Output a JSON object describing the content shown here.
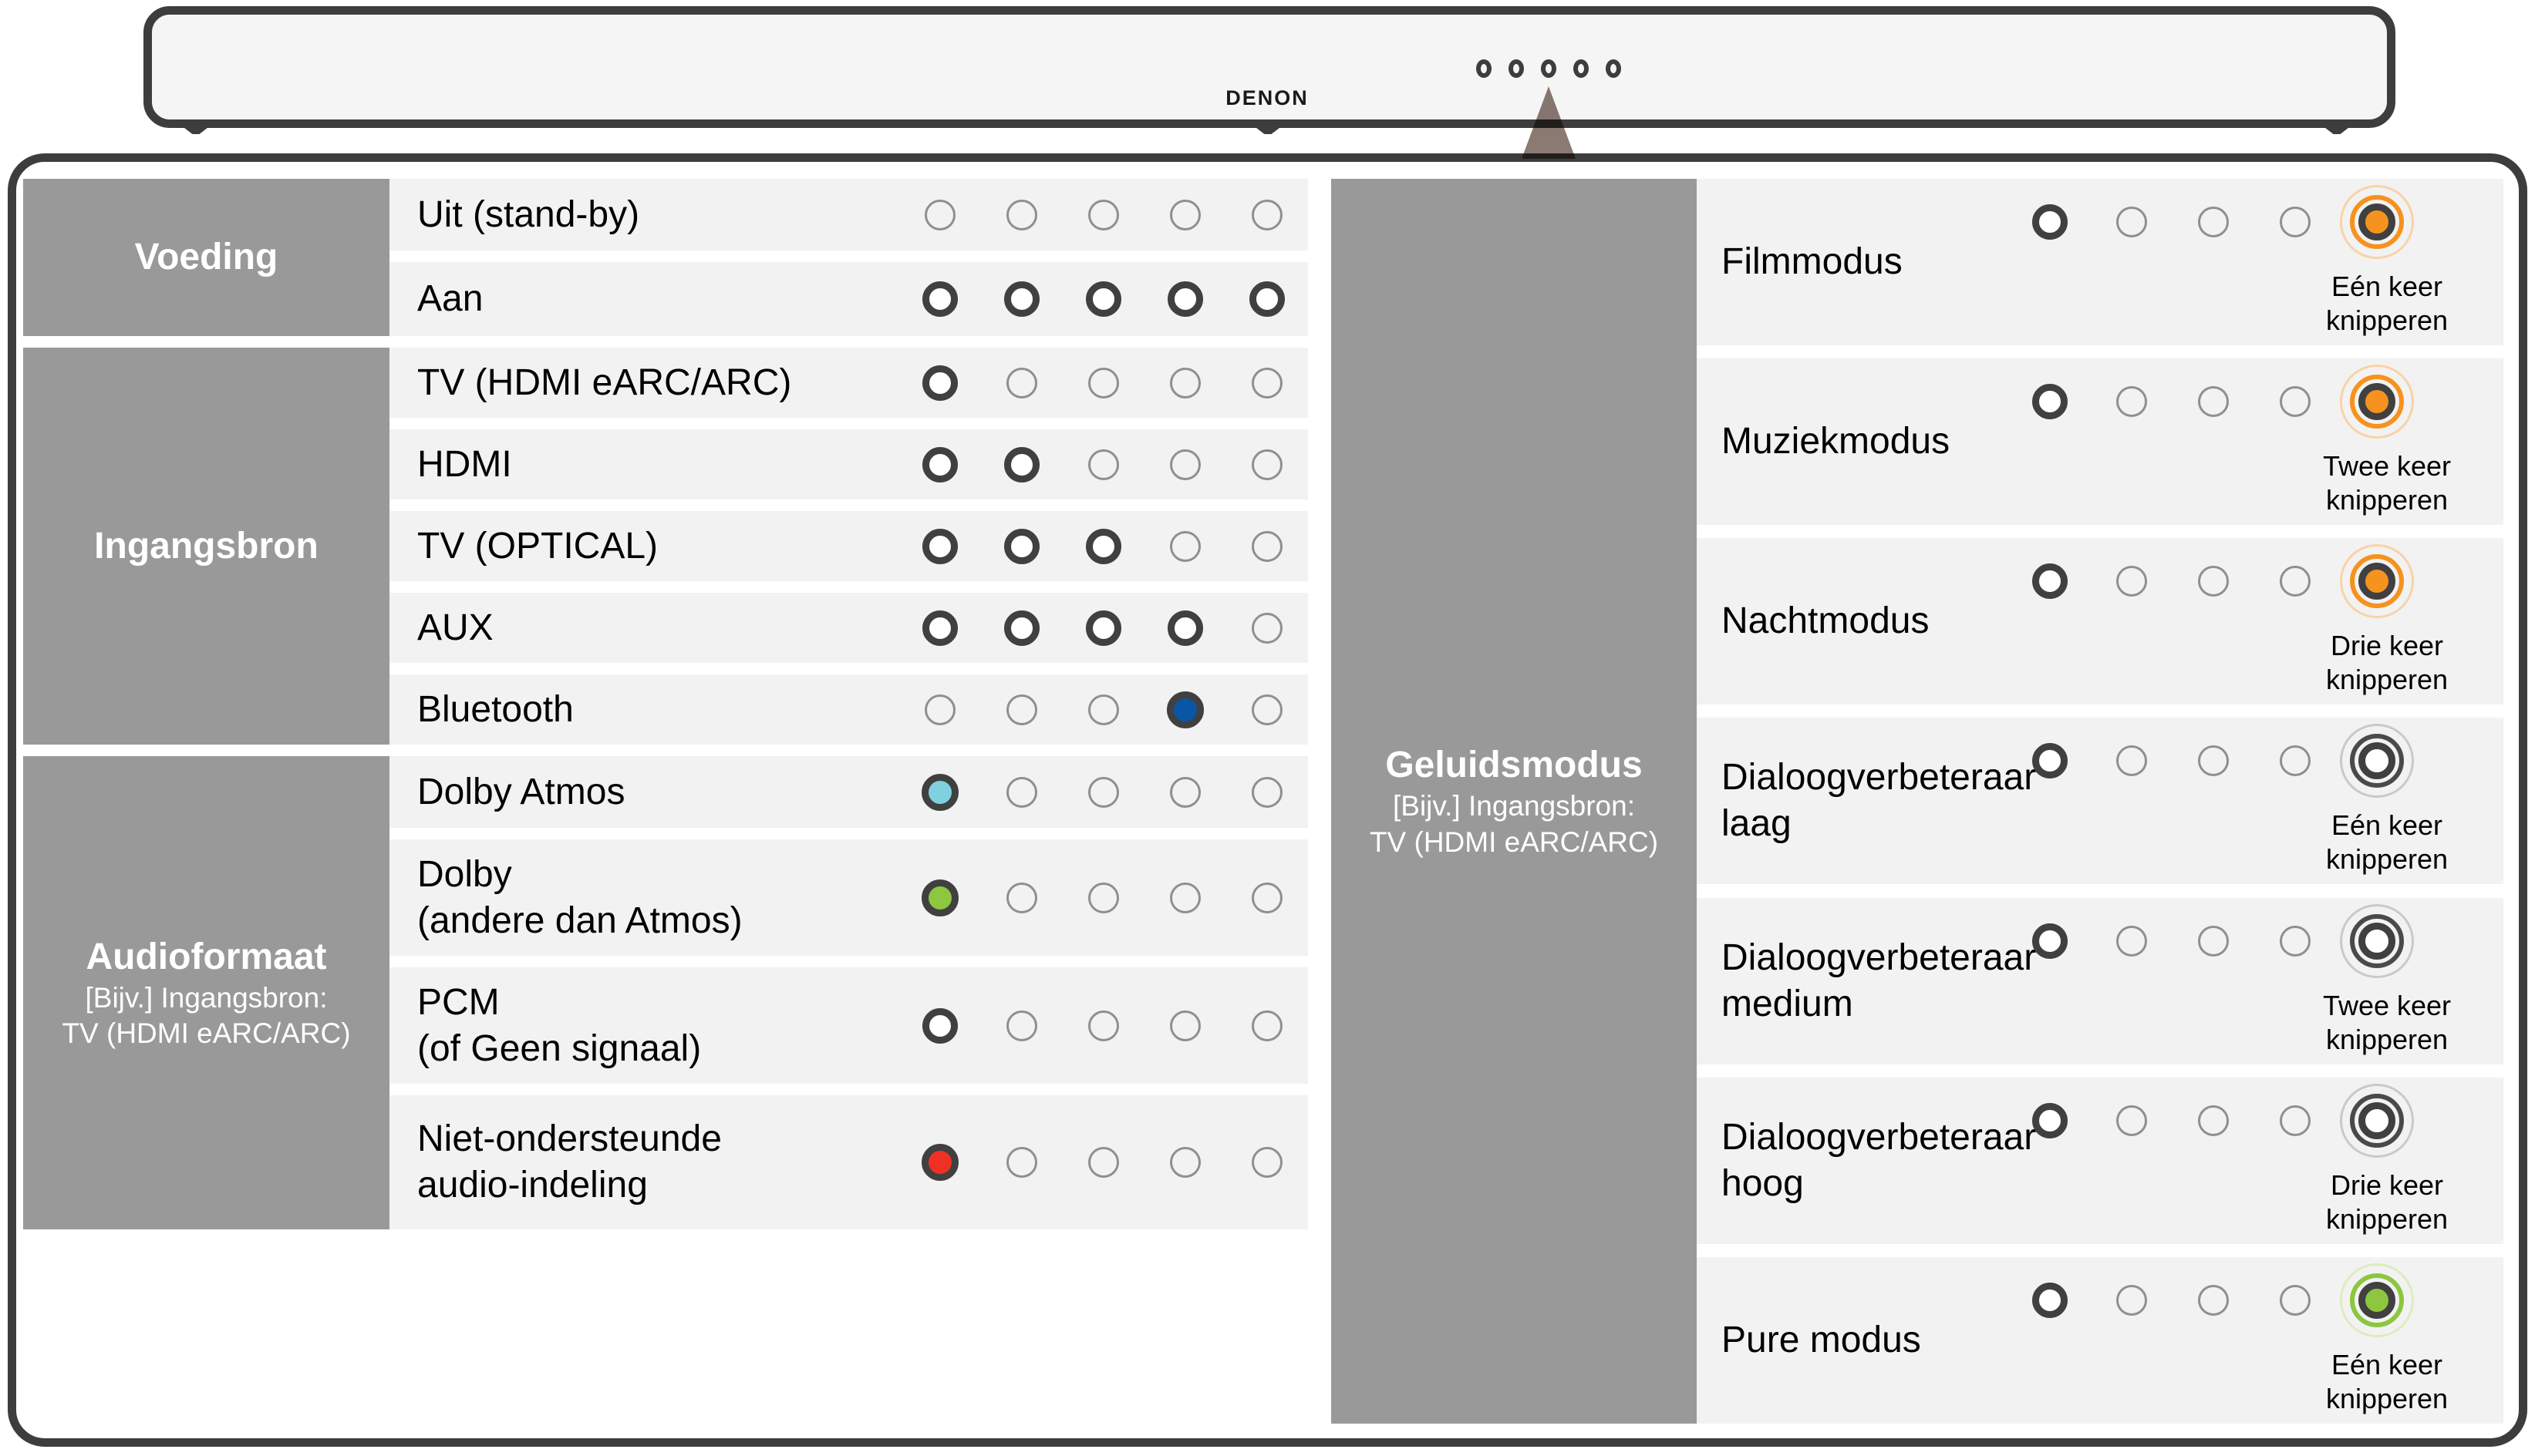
{
  "soundbar": {
    "brand": "DENON",
    "led_count": 5
  },
  "colors": {
    "border": "#3d3d3d",
    "header_block": "#999999",
    "row_band": "#f2f2f2",
    "soundbar_bg": "#f5f5f5",
    "led_ring": "#404040",
    "led_off": "#8f8f8f",
    "orange": "#f6921e",
    "orange_faint": "#f8d3a6",
    "blue": "#0b55a5",
    "cyan": "#7fd1e0",
    "green": "#8dc63f",
    "green_faint": "#dcedbd",
    "red": "#ee3124",
    "white_mid_ring": "#4a4a4a",
    "white_faint_ring": "#c9c9c9",
    "triangle": "#8a7a72",
    "header_text": "#ffffff",
    "text": "#111111"
  },
  "left_table": {
    "groups": [
      {
        "header": "Voeding",
        "sub": [],
        "rows": [
          {
            "label_lines": [
              "Uit (stand-by)"
            ],
            "leds": [
              "off",
              "off",
              "off",
              "off",
              "off"
            ]
          },
          {
            "label_lines": [
              "Aan"
            ],
            "leds": [
              "on",
              "on",
              "on",
              "on",
              "on"
            ]
          }
        ]
      },
      {
        "header": "Ingangsbron",
        "sub": [],
        "rows": [
          {
            "label_lines": [
              "TV (HDMI eARC/ARC)"
            ],
            "leds": [
              "on",
              "off",
              "off",
              "off",
              "off"
            ]
          },
          {
            "label_lines": [
              "HDMI"
            ],
            "leds": [
              "on",
              "on",
              "off",
              "off",
              "off"
            ]
          },
          {
            "label_lines": [
              "TV (OPTICAL)"
            ],
            "leds": [
              "on",
              "on",
              "on",
              "off",
              "off"
            ]
          },
          {
            "label_lines": [
              "AUX"
            ],
            "leds": [
              "on",
              "on",
              "on",
              "on",
              "off"
            ]
          },
          {
            "label_lines": [
              "Bluetooth"
            ],
            "leds": [
              "off",
              "off",
              "off",
              "blue",
              "off"
            ]
          }
        ]
      },
      {
        "header": "Audioformaat",
        "sub": [
          "[Bijv.] Ingangsbron:",
          "TV (HDMI eARC/ARC)"
        ],
        "rows": [
          {
            "label_lines": [
              "Dolby Atmos"
            ],
            "leds": [
              "cyan",
              "off",
              "off",
              "off",
              "off"
            ]
          },
          {
            "label_lines": [
              "Dolby",
              "(andere dan Atmos)"
            ],
            "leds": [
              "green",
              "off",
              "off",
              "off",
              "off"
            ]
          },
          {
            "label_lines": [
              "PCM",
              "(of Geen signaal)"
            ],
            "leds": [
              "on",
              "off",
              "off",
              "off",
              "off"
            ]
          },
          {
            "label_lines": [
              "Niet-ondersteunde",
              "audio-indeling"
            ],
            "leds": [
              "red",
              "off",
              "off",
              "off",
              "off"
            ]
          }
        ]
      }
    ]
  },
  "right_table": {
    "header": "Geluidsmodus",
    "sub": [
      "[Bijv.] Ingangsbron:",
      "TV (HDMI eARC/ARC)"
    ],
    "rows": [
      {
        "label_lines": [
          "Filmmodus"
        ],
        "leds": [
          "on",
          "off",
          "off",
          "off",
          "blink-orange"
        ],
        "note_lines": [
          "Eén keer",
          "knipperen"
        ]
      },
      {
        "label_lines": [
          "Muziekmodus"
        ],
        "leds": [
          "on",
          "off",
          "off",
          "off",
          "blink-orange"
        ],
        "note_lines": [
          "Twee keer",
          "knipperen"
        ]
      },
      {
        "label_lines": [
          "Nachtmodus"
        ],
        "leds": [
          "on",
          "off",
          "off",
          "off",
          "blink-orange"
        ],
        "note_lines": [
          "Drie keer",
          "knipperen"
        ]
      },
      {
        "label_lines": [
          "Dialoogverbeteraar",
          "laag"
        ],
        "leds": [
          "on",
          "off",
          "off",
          "off",
          "blink-white"
        ],
        "note_lines": [
          "Eén keer",
          "knipperen"
        ]
      },
      {
        "label_lines": [
          "Dialoogverbeteraar",
          "medium"
        ],
        "leds": [
          "on",
          "off",
          "off",
          "off",
          "blink-white"
        ],
        "note_lines": [
          "Twee keer",
          "knipperen"
        ]
      },
      {
        "label_lines": [
          "Dialoogverbeteraar",
          "hoog"
        ],
        "leds": [
          "on",
          "off",
          "off",
          "off",
          "blink-white"
        ],
        "note_lines": [
          "Drie keer",
          "knipperen"
        ]
      },
      {
        "label_lines": [
          "Pure modus"
        ],
        "leds": [
          "on",
          "off",
          "off",
          "off",
          "blink-green"
        ],
        "note_lines": [
          "Eén keer",
          "knipperen"
        ]
      }
    ]
  }
}
